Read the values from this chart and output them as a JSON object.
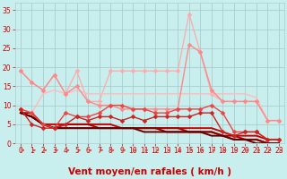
{
  "title": "",
  "xlabel": "Vent moyen/en rafales ( km/h )",
  "xlim": [
    -0.5,
    23.5
  ],
  "ylim": [
    0,
    37
  ],
  "xticks": [
    0,
    1,
    2,
    3,
    4,
    5,
    6,
    7,
    8,
    9,
    10,
    11,
    12,
    13,
    14,
    15,
    16,
    17,
    18,
    19,
    20,
    21,
    22,
    23
  ],
  "yticks": [
    0,
    5,
    10,
    15,
    20,
    25,
    30,
    35
  ],
  "background_color": "#c8eeee",
  "grid_color": "#aacccc",
  "lines": [
    {
      "y": [
        19,
        16,
        14,
        18,
        13,
        19,
        11,
        11,
        19,
        19,
        19,
        19,
        19,
        19,
        19,
        34,
        24,
        13,
        11,
        11,
        11,
        11,
        6,
        6
      ],
      "color": "#ffaaaa",
      "marker": "D",
      "ms": 2.5,
      "lw": 0.9,
      "zorder": 2
    },
    {
      "y": [
        19,
        16,
        14,
        18,
        13,
        15,
        11,
        10,
        10,
        9,
        9,
        9,
        9,
        9,
        9,
        26,
        24,
        14,
        11,
        11,
        11,
        11,
        6,
        6
      ],
      "color": "#ff8888",
      "marker": "D",
      "ms": 2.5,
      "lw": 1.0,
      "zorder": 3
    },
    {
      "y": [
        9,
        8,
        13,
        14,
        13,
        14,
        13,
        13,
        13,
        13,
        13,
        13,
        13,
        13,
        13,
        13,
        13,
        13,
        13,
        13,
        13,
        12,
        6,
        6
      ],
      "color": "#ffbbbb",
      "marker": null,
      "ms": 0,
      "lw": 1.0,
      "zorder": 2
    },
    {
      "y": [
        9,
        8,
        5,
        4,
        8,
        7,
        7,
        8,
        10,
        10,
        9,
        9,
        8,
        8,
        9,
        9,
        9,
        10,
        8,
        3,
        3,
        3,
        1,
        1
      ],
      "color": "#ee4444",
      "marker": "D",
      "ms": 2.5,
      "lw": 1.0,
      "zorder": 4
    },
    {
      "y": [
        9,
        5,
        4,
        4,
        5,
        7,
        6,
        7,
        7,
        6,
        7,
        6,
        7,
        7,
        7,
        7,
        8,
        8,
        3,
        2,
        3,
        3,
        1,
        1
      ],
      "color": "#cc2222",
      "marker": "D",
      "ms": 2.5,
      "lw": 1.0,
      "zorder": 4
    },
    {
      "y": [
        8,
        8,
        5,
        5,
        5,
        5,
        5,
        5,
        5,
        4,
        4,
        4,
        4,
        4,
        4,
        4,
        4,
        4,
        3,
        2,
        2,
        2,
        1,
        1
      ],
      "color": "#cc0000",
      "marker": null,
      "ms": 0,
      "lw": 1.4,
      "zorder": 3
    },
    {
      "y": [
        8,
        7,
        5,
        4,
        5,
        5,
        5,
        4,
        4,
        4,
        4,
        4,
        4,
        4,
        4,
        3,
        3,
        3,
        2,
        2,
        1,
        1,
        0,
        0
      ],
      "color": "#aa0000",
      "marker": null,
      "ms": 0,
      "lw": 1.4,
      "zorder": 3
    },
    {
      "y": [
        8,
        7,
        5,
        4,
        4,
        4,
        4,
        4,
        4,
        4,
        4,
        4,
        4,
        3,
        3,
        3,
        3,
        3,
        2,
        1,
        1,
        1,
        0,
        0
      ],
      "color": "#880000",
      "marker": null,
      "ms": 0,
      "lw": 1.4,
      "zorder": 3
    },
    {
      "y": [
        8,
        7,
        5,
        4,
        4,
        4,
        4,
        4,
        4,
        4,
        4,
        3,
        3,
        3,
        3,
        3,
        3,
        2,
        2,
        1,
        1,
        0,
        0,
        0
      ],
      "color": "#660000",
      "marker": null,
      "ms": 0,
      "lw": 1.4,
      "zorder": 3
    }
  ],
  "arrow_color": "#dd4444",
  "xlabel_color": "#cc0000",
  "tick_color": "#cc0000",
  "xlabel_fontsize": 7.5,
  "tick_fontsize": 5.5
}
